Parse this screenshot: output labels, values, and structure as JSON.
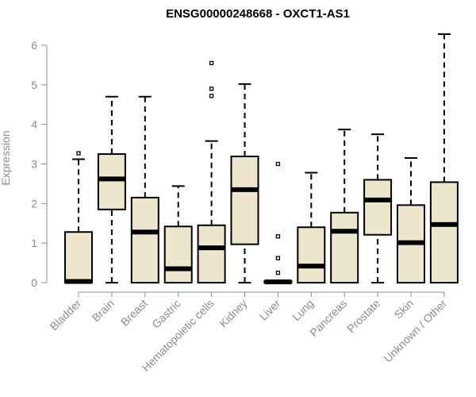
{
  "chart_data": {
    "type": "boxplot",
    "title": "ENSG00000248668 - OXCT1-AS1",
    "xlabel": "",
    "ylabel": "Expression",
    "ylim": [
      0,
      6.3
    ],
    "yticks": [
      0,
      1,
      2,
      3,
      4,
      5,
      6
    ],
    "grid": false,
    "box_fill": "#ede6cc",
    "box_stroke": "#000000",
    "axis_color": "#8c8c8c",
    "categories": [
      "Bladder",
      "Brain",
      "Breast",
      "Gastric",
      "Hematopoietic cells",
      "Kidney",
      "Liver",
      "Lung",
      "Pancreas",
      "Prostate",
      "Skin",
      "Unknown / Other"
    ],
    "boxes": [
      {
        "min": 0,
        "q1": 0,
        "median": 0.03,
        "q3": 1.28,
        "max": 3.12,
        "outliers": [
          3.27
        ]
      },
      {
        "min": 0,
        "q1": 1.85,
        "median": 2.62,
        "q3": 3.25,
        "max": 4.7,
        "outliers": []
      },
      {
        "min": 0,
        "q1": 0,
        "median": 1.28,
        "q3": 2.15,
        "max": 4.7,
        "outliers": []
      },
      {
        "min": 0,
        "q1": 0,
        "median": 0.35,
        "q3": 1.42,
        "max": 2.44,
        "outliers": []
      },
      {
        "min": 0,
        "q1": 0,
        "median": 0.88,
        "q3": 1.45,
        "max": 3.58,
        "outliers": [
          4.72,
          4.9,
          5.55
        ]
      },
      {
        "min": 0,
        "q1": 0.97,
        "median": 2.35,
        "q3": 3.19,
        "max": 5.02,
        "outliers": []
      },
      {
        "min": 0,
        "q1": 0,
        "median": 0.02,
        "q3": 0.04,
        "max": 0.06,
        "outliers": [
          0.25,
          0.62,
          1.17,
          3.0
        ]
      },
      {
        "min": 0,
        "q1": 0,
        "median": 0.42,
        "q3": 1.4,
        "max": 2.78,
        "outliers": []
      },
      {
        "min": 0,
        "q1": 0,
        "median": 1.3,
        "q3": 1.77,
        "max": 3.87,
        "outliers": []
      },
      {
        "min": 0,
        "q1": 1.21,
        "median": 2.09,
        "q3": 2.6,
        "max": 3.75,
        "outliers": []
      },
      {
        "min": 0,
        "q1": 0,
        "median": 1.01,
        "q3": 1.96,
        "max": 3.15,
        "outliers": []
      },
      {
        "min": 0,
        "q1": 0,
        "median": 1.47,
        "q3": 2.54,
        "max": 6.28,
        "outliers": []
      }
    ]
  }
}
